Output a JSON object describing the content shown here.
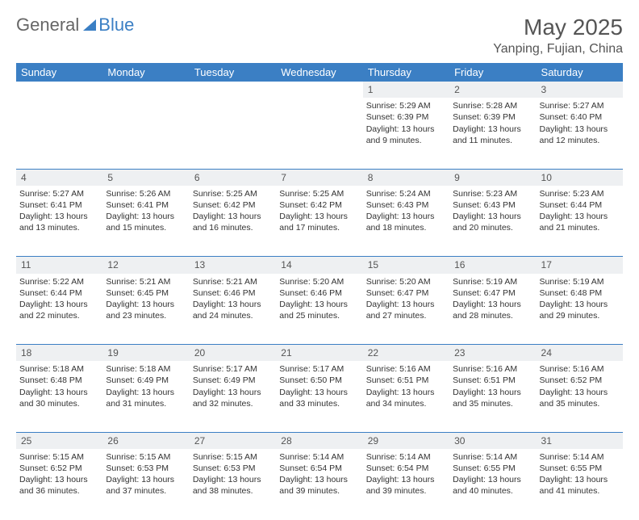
{
  "logo": {
    "text_gray": "General",
    "text_blue": "Blue"
  },
  "title": "May 2025",
  "location": "Yanping, Fujian, China",
  "colors": {
    "header_bg": "#3b7fc4",
    "header_fg": "#ffffff",
    "daynum_bg": "#eef0f2",
    "border": "#3b7fc4"
  },
  "weekdays": [
    "Sunday",
    "Monday",
    "Tuesday",
    "Wednesday",
    "Thursday",
    "Friday",
    "Saturday"
  ],
  "weeks": [
    [
      null,
      null,
      null,
      null,
      {
        "n": "1",
        "sr": "5:29 AM",
        "ss": "6:39 PM",
        "dl": "13 hours and 9 minutes."
      },
      {
        "n": "2",
        "sr": "5:28 AM",
        "ss": "6:39 PM",
        "dl": "13 hours and 11 minutes."
      },
      {
        "n": "3",
        "sr": "5:27 AM",
        "ss": "6:40 PM",
        "dl": "13 hours and 12 minutes."
      }
    ],
    [
      {
        "n": "4",
        "sr": "5:27 AM",
        "ss": "6:41 PM",
        "dl": "13 hours and 13 minutes."
      },
      {
        "n": "5",
        "sr": "5:26 AM",
        "ss": "6:41 PM",
        "dl": "13 hours and 15 minutes."
      },
      {
        "n": "6",
        "sr": "5:25 AM",
        "ss": "6:42 PM",
        "dl": "13 hours and 16 minutes."
      },
      {
        "n": "7",
        "sr": "5:25 AM",
        "ss": "6:42 PM",
        "dl": "13 hours and 17 minutes."
      },
      {
        "n": "8",
        "sr": "5:24 AM",
        "ss": "6:43 PM",
        "dl": "13 hours and 18 minutes."
      },
      {
        "n": "9",
        "sr": "5:23 AM",
        "ss": "6:43 PM",
        "dl": "13 hours and 20 minutes."
      },
      {
        "n": "10",
        "sr": "5:23 AM",
        "ss": "6:44 PM",
        "dl": "13 hours and 21 minutes."
      }
    ],
    [
      {
        "n": "11",
        "sr": "5:22 AM",
        "ss": "6:44 PM",
        "dl": "13 hours and 22 minutes."
      },
      {
        "n": "12",
        "sr": "5:21 AM",
        "ss": "6:45 PM",
        "dl": "13 hours and 23 minutes."
      },
      {
        "n": "13",
        "sr": "5:21 AM",
        "ss": "6:46 PM",
        "dl": "13 hours and 24 minutes."
      },
      {
        "n": "14",
        "sr": "5:20 AM",
        "ss": "6:46 PM",
        "dl": "13 hours and 25 minutes."
      },
      {
        "n": "15",
        "sr": "5:20 AM",
        "ss": "6:47 PM",
        "dl": "13 hours and 27 minutes."
      },
      {
        "n": "16",
        "sr": "5:19 AM",
        "ss": "6:47 PM",
        "dl": "13 hours and 28 minutes."
      },
      {
        "n": "17",
        "sr": "5:19 AM",
        "ss": "6:48 PM",
        "dl": "13 hours and 29 minutes."
      }
    ],
    [
      {
        "n": "18",
        "sr": "5:18 AM",
        "ss": "6:48 PM",
        "dl": "13 hours and 30 minutes."
      },
      {
        "n": "19",
        "sr": "5:18 AM",
        "ss": "6:49 PM",
        "dl": "13 hours and 31 minutes."
      },
      {
        "n": "20",
        "sr": "5:17 AM",
        "ss": "6:49 PM",
        "dl": "13 hours and 32 minutes."
      },
      {
        "n": "21",
        "sr": "5:17 AM",
        "ss": "6:50 PM",
        "dl": "13 hours and 33 minutes."
      },
      {
        "n": "22",
        "sr": "5:16 AM",
        "ss": "6:51 PM",
        "dl": "13 hours and 34 minutes."
      },
      {
        "n": "23",
        "sr": "5:16 AM",
        "ss": "6:51 PM",
        "dl": "13 hours and 35 minutes."
      },
      {
        "n": "24",
        "sr": "5:16 AM",
        "ss": "6:52 PM",
        "dl": "13 hours and 35 minutes."
      }
    ],
    [
      {
        "n": "25",
        "sr": "5:15 AM",
        "ss": "6:52 PM",
        "dl": "13 hours and 36 minutes."
      },
      {
        "n": "26",
        "sr": "5:15 AM",
        "ss": "6:53 PM",
        "dl": "13 hours and 37 minutes."
      },
      {
        "n": "27",
        "sr": "5:15 AM",
        "ss": "6:53 PM",
        "dl": "13 hours and 38 minutes."
      },
      {
        "n": "28",
        "sr": "5:14 AM",
        "ss": "6:54 PM",
        "dl": "13 hours and 39 minutes."
      },
      {
        "n": "29",
        "sr": "5:14 AM",
        "ss": "6:54 PM",
        "dl": "13 hours and 39 minutes."
      },
      {
        "n": "30",
        "sr": "5:14 AM",
        "ss": "6:55 PM",
        "dl": "13 hours and 40 minutes."
      },
      {
        "n": "31",
        "sr": "5:14 AM",
        "ss": "6:55 PM",
        "dl": "13 hours and 41 minutes."
      }
    ]
  ],
  "labels": {
    "sunrise": "Sunrise:",
    "sunset": "Sunset:",
    "daylight": "Daylight:"
  }
}
